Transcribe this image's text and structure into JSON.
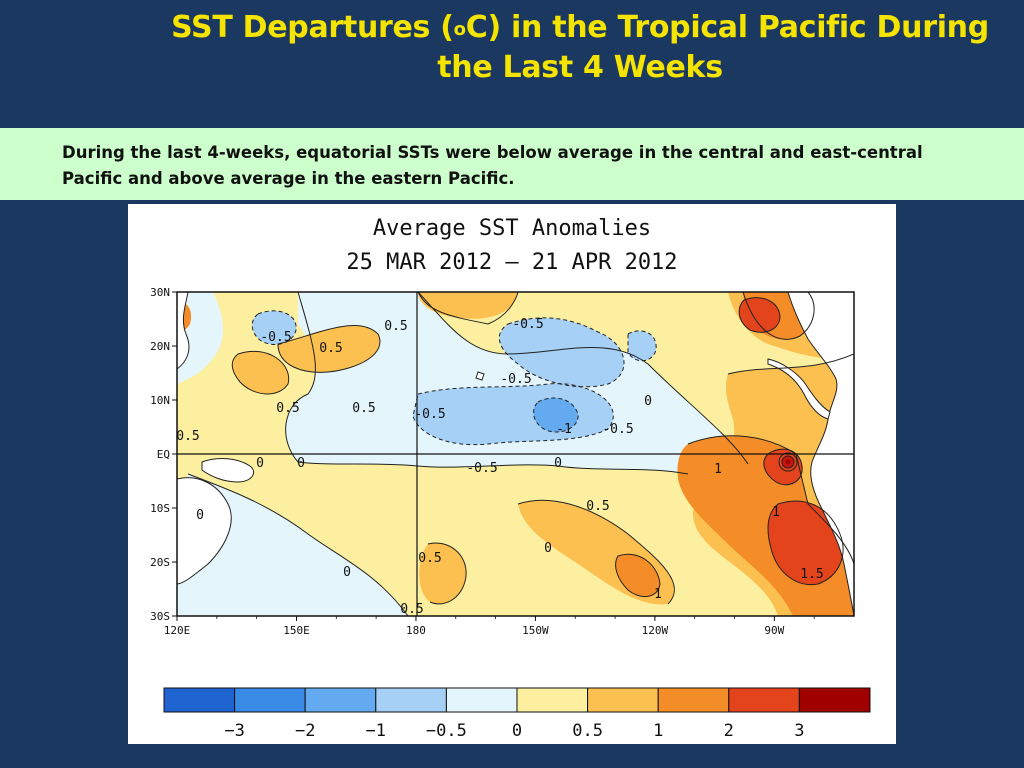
{
  "slide": {
    "title_part1": "SST Departures (",
    "title_sup": "o",
    "title_part2": "C) in the Tropical Pacific During the Last 4 Weeks",
    "summary": "During the last 4-weeks, equatorial SSTs were below average in the central and east-central Pacific and above average in the eastern Pacific."
  },
  "figure": {
    "title_line1": "Average SST Anomalies",
    "title_line2": "25 MAR 2012 – 21 APR 2012",
    "lat_labels": [
      "30N",
      "20N",
      "10N",
      "EQ",
      "10S",
      "20S",
      "30S"
    ],
    "lon_labels": [
      "120E",
      "150E",
      "180",
      "150W",
      "120W",
      "90W"
    ],
    "contour_labels": [
      "-0.5",
      "0.5",
      "0.5",
      "-0.5",
      "-0.5",
      "0.5",
      "0.5",
      "-0.5",
      "-1",
      "-0.5",
      "0",
      "0.5",
      "0",
      "-0.5",
      "0",
      "1",
      "0.5",
      "1",
      "0",
      "0.5",
      "0",
      "1.5",
      "1",
      "0.5",
      "0",
      "0"
    ],
    "colorbar": {
      "ticks": [
        "−3",
        "−2",
        "−1",
        "−0.5",
        "0",
        "0.5",
        "1",
        "2",
        "3"
      ],
      "colors": [
        "#1f64d0",
        "#3a8ae8",
        "#64aaf0",
        "#a6d0f6",
        "#e4f6fc",
        "#fcf0a0",
        "#fcc050",
        "#f48c28",
        "#e4441c",
        "#c8140c",
        "#a00000"
      ]
    }
  }
}
